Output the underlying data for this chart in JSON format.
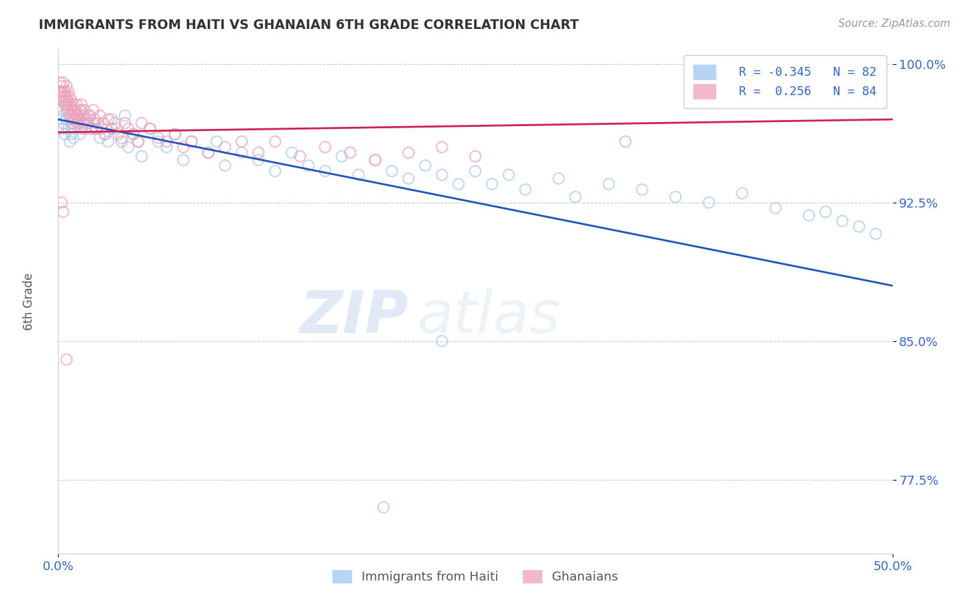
{
  "title": "IMMIGRANTS FROM HAITI VS GHANAIAN 6TH GRADE CORRELATION CHART",
  "source_text": "Source: ZipAtlas.com",
  "ylabel": "6th Grade",
  "xlim": [
    0.0,
    0.5
  ],
  "ylim": [
    0.735,
    1.008
  ],
  "xtick_labels": [
    "0.0%",
    "50.0%"
  ],
  "ytick_labels": [
    "77.5%",
    "85.0%",
    "92.5%",
    "100.0%"
  ],
  "ytick_vals": [
    0.775,
    0.85,
    0.925,
    1.0
  ],
  "xtick_vals": [
    0.0,
    0.5
  ],
  "legend_r1": "R = -0.345",
  "legend_n1": "N = 82",
  "legend_r2": "R =  0.256",
  "legend_n2": "N = 84",
  "blue_color": "#a8c8f0",
  "pink_color": "#f0a0b8",
  "blue_line_color": "#2255bb",
  "pink_line_color": "#cc2255",
  "watermark_zip": "ZIP",
  "watermark_atlas": "atlas",
  "background_color": "#ffffff",
  "grid_color": "#cccccc",
  "label_color": "#3366cc",
  "haiti_x": [
    0.001,
    0.002,
    0.002,
    0.003,
    0.003,
    0.004,
    0.004,
    0.005,
    0.005,
    0.006,
    0.006,
    0.007,
    0.007,
    0.008,
    0.008,
    0.009,
    0.009,
    0.01,
    0.01,
    0.011,
    0.012,
    0.013,
    0.014,
    0.015,
    0.016,
    0.017,
    0.018,
    0.02,
    0.022,
    0.025,
    0.028,
    0.03,
    0.032,
    0.035,
    0.038,
    0.04,
    0.042,
    0.045,
    0.048,
    0.05,
    0.055,
    0.06,
    0.065,
    0.07,
    0.075,
    0.08,
    0.09,
    0.095,
    0.1,
    0.11,
    0.12,
    0.13,
    0.14,
    0.15,
    0.16,
    0.17,
    0.18,
    0.19,
    0.2,
    0.21,
    0.22,
    0.23,
    0.24,
    0.25,
    0.26,
    0.27,
    0.28,
    0.3,
    0.31,
    0.33,
    0.35,
    0.37,
    0.39,
    0.41,
    0.43,
    0.45,
    0.46,
    0.47,
    0.48,
    0.49,
    0.23,
    0.195
  ],
  "haiti_y": [
    0.97,
    0.975,
    0.965,
    0.972,
    0.968,
    0.98,
    0.962,
    0.975,
    0.97,
    0.978,
    0.965,
    0.972,
    0.958,
    0.968,
    0.962,
    0.975,
    0.96,
    0.97,
    0.965,
    0.972,
    0.968,
    0.962,
    0.975,
    0.97,
    0.965,
    0.968,
    0.972,
    0.965,
    0.968,
    0.96,
    0.962,
    0.958,
    0.97,
    0.965,
    0.96,
    0.972,
    0.955,
    0.962,
    0.958,
    0.95,
    0.965,
    0.958,
    0.955,
    0.962,
    0.948,
    0.958,
    0.952,
    0.958,
    0.945,
    0.952,
    0.948,
    0.942,
    0.952,
    0.945,
    0.942,
    0.95,
    0.94,
    0.948,
    0.942,
    0.938,
    0.945,
    0.94,
    0.935,
    0.942,
    0.935,
    0.94,
    0.932,
    0.938,
    0.928,
    0.935,
    0.932,
    0.928,
    0.925,
    0.93,
    0.922,
    0.918,
    0.92,
    0.915,
    0.912,
    0.908,
    0.85,
    0.76
  ],
  "ghana_x": [
    0.001,
    0.001,
    0.002,
    0.002,
    0.002,
    0.003,
    0.003,
    0.003,
    0.004,
    0.004,
    0.004,
    0.005,
    0.005,
    0.005,
    0.006,
    0.006,
    0.006,
    0.007,
    0.007,
    0.007,
    0.008,
    0.008,
    0.008,
    0.009,
    0.009,
    0.009,
    0.01,
    0.01,
    0.011,
    0.011,
    0.012,
    0.012,
    0.013,
    0.013,
    0.014,
    0.014,
    0.015,
    0.015,
    0.016,
    0.016,
    0.017,
    0.018,
    0.019,
    0.02,
    0.021,
    0.022,
    0.023,
    0.024,
    0.025,
    0.026,
    0.027,
    0.028,
    0.03,
    0.032,
    0.034,
    0.036,
    0.038,
    0.04,
    0.042,
    0.045,
    0.048,
    0.05,
    0.055,
    0.06,
    0.065,
    0.07,
    0.075,
    0.08,
    0.09,
    0.1,
    0.11,
    0.12,
    0.13,
    0.145,
    0.16,
    0.175,
    0.19,
    0.21,
    0.23,
    0.25,
    0.002,
    0.003,
    0.005,
    0.34
  ],
  "ghana_y": [
    0.985,
    0.99,
    0.988,
    0.985,
    0.982,
    0.99,
    0.985,
    0.98,
    0.985,
    0.982,
    0.978,
    0.988,
    0.982,
    0.978,
    0.985,
    0.98,
    0.975,
    0.982,
    0.978,
    0.972,
    0.98,
    0.975,
    0.97,
    0.978,
    0.972,
    0.968,
    0.975,
    0.97,
    0.978,
    0.972,
    0.968,
    0.972,
    0.975,
    0.97,
    0.965,
    0.978,
    0.972,
    0.968,
    0.965,
    0.975,
    0.97,
    0.968,
    0.972,
    0.965,
    0.975,
    0.97,
    0.965,
    0.968,
    0.972,
    0.965,
    0.968,
    0.962,
    0.97,
    0.965,
    0.968,
    0.962,
    0.958,
    0.968,
    0.965,
    0.962,
    0.958,
    0.968,
    0.965,
    0.96,
    0.958,
    0.962,
    0.955,
    0.958,
    0.952,
    0.955,
    0.958,
    0.952,
    0.958,
    0.95,
    0.955,
    0.952,
    0.948,
    0.952,
    0.955,
    0.95,
    0.925,
    0.92,
    0.84,
    0.958
  ]
}
